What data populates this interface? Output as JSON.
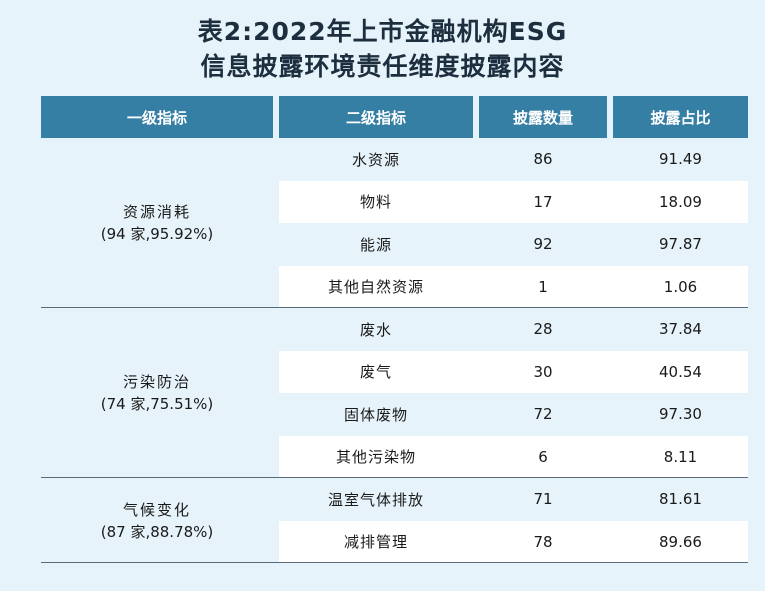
{
  "title_line1": "表2:2022年上市金融机构ESG",
  "title_line2": "信息披露环境责任维度披露内容",
  "headers": {
    "level1": "一级指标",
    "level2": "二级指标",
    "count": "披露数量",
    "ratio": "披露占比"
  },
  "groups": [
    {
      "name": "资源消耗",
      "detail": "(94 家,95.92%)",
      "rows": [
        {
          "name": "水资源",
          "count": "86",
          "ratio": "91.49"
        },
        {
          "name": "物料",
          "count": "17",
          "ratio": "18.09"
        },
        {
          "name": "能源",
          "count": "92",
          "ratio": "97.87"
        },
        {
          "name": "其他自然资源",
          "count": "1",
          "ratio": "1.06"
        }
      ]
    },
    {
      "name": "污染防治",
      "detail": "(74 家,75.51%)",
      "rows": [
        {
          "name": "废水",
          "count": "28",
          "ratio": "37.84"
        },
        {
          "name": "废气",
          "count": "30",
          "ratio": "40.54"
        },
        {
          "name": "固体废物",
          "count": "72",
          "ratio": "97.30"
        },
        {
          "name": "其他污染物",
          "count": "6",
          "ratio": "8.11"
        }
      ]
    },
    {
      "name": "气候变化",
      "detail": "(87 家,88.78%)",
      "rows": [
        {
          "name": "温室气体排放",
          "count": "71",
          "ratio": "81.61"
        },
        {
          "name": "减排管理",
          "count": "78",
          "ratio": "89.66"
        }
      ]
    }
  ]
}
